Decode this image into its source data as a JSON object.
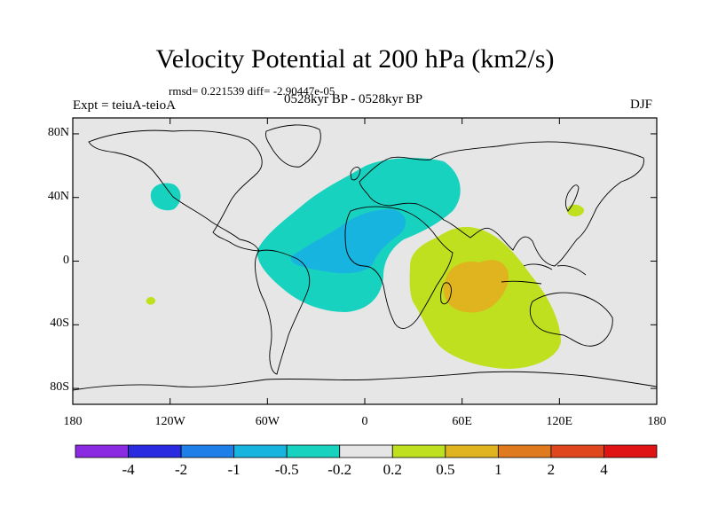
{
  "title": "Velocity Potential at 200 hPa (km2/s)",
  "stats_line": "rmsd= 0.221539 diff= -2.90447e-05",
  "experiment_label": "Expt = teiuA-teioA",
  "period_label": "0528kyr BP - 0528kyr BP",
  "season_label": "DJF",
  "colors": {
    "background_ocean": "#e6e6e6",
    "coast": "#000000",
    "levels": [
      "#8a2be2",
      "#2a2ae0",
      "#1e7fe8",
      "#18b4e0",
      "#18d2c0",
      "#e6e6e6",
      "#bfe01e",
      "#e0b41e",
      "#e07a1e",
      "#e0461e",
      "#e01414"
    ]
  },
  "y_axis": {
    "ticks": [
      "80N",
      "40N",
      "0",
      "40S",
      "80S"
    ],
    "values": [
      80,
      40,
      0,
      -40,
      -80
    ]
  },
  "x_axis": {
    "ticks": [
      "180",
      "120W",
      "60W",
      "0",
      "60E",
      "120E",
      "180"
    ],
    "values": [
      -180,
      -120,
      -60,
      0,
      60,
      120,
      180
    ]
  },
  "colorbar": {
    "labels": [
      "-4",
      "-2",
      "-1",
      "-0.5",
      "-0.2",
      "0.2",
      "0.5",
      "1",
      "2",
      "4"
    ],
    "thresholds": [
      -4,
      -2,
      -1,
      -0.5,
      -0.2,
      0.2,
      0.5,
      1,
      2,
      4
    ]
  }
}
